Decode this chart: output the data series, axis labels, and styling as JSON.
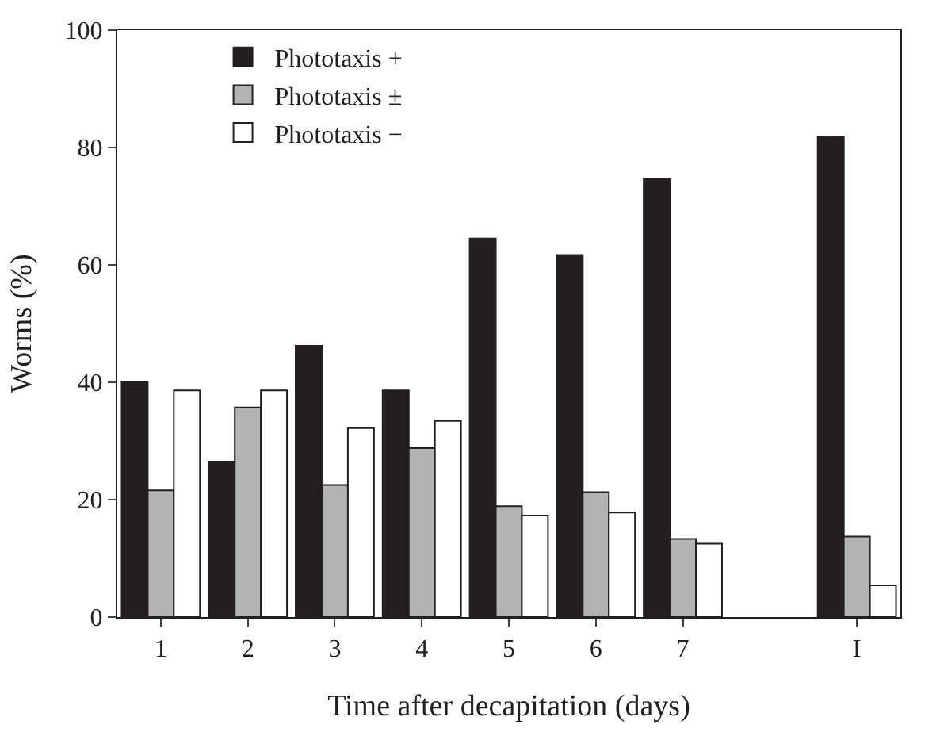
{
  "chart_data": {
    "type": "bar",
    "xlabel": "Time after decapitation (days)",
    "ylabel": "Worms (%)",
    "categories": [
      "1",
      "2",
      "3",
      "4",
      "5",
      "6",
      "7",
      null,
      "I"
    ],
    "series": [
      {
        "name": "Phototaxis +",
        "color": "#231f20",
        "values": [
          40.1,
          26.5,
          46.2,
          38.6,
          64.5,
          61.7,
          74.6,
          null,
          81.9
        ]
      },
      {
        "name": "Phototaxis ±",
        "color": "#b3b3b3",
        "values": [
          21.6,
          35.7,
          22.5,
          28.8,
          18.9,
          21.3,
          13.3,
          null,
          13.7
        ]
      },
      {
        "name": "Phototaxis −",
        "color": "#ffffff",
        "values": [
          38.6,
          38.6,
          32.2,
          33.4,
          17.3,
          17.8,
          12.5,
          null,
          5.4
        ]
      }
    ],
    "ylim": [
      0,
      100
    ],
    "yticks": [
      0,
      20,
      40,
      60,
      80,
      100
    ],
    "legend": "top left"
  }
}
